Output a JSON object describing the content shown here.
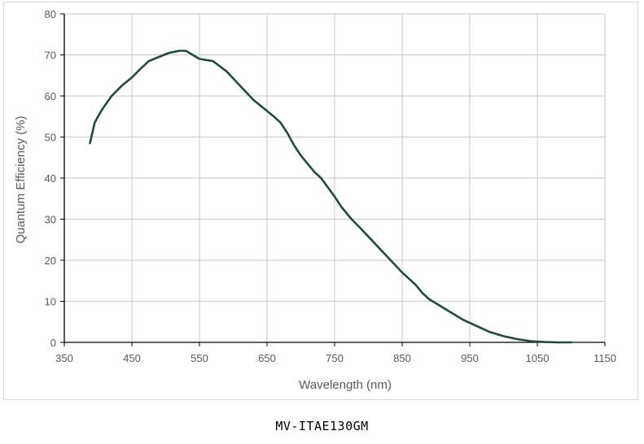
{
  "caption": "MV-ITAE130GM",
  "chart_data": {
    "type": "line",
    "title": "",
    "xlabel": "Wavelength (nm)",
    "ylabel": "Quantum Efficiency (%)",
    "xlim": [
      350,
      1150
    ],
    "ylim": [
      0,
      80
    ],
    "xticks": [
      350,
      450,
      550,
      650,
      750,
      850,
      950,
      1050,
      1150
    ],
    "yticks": [
      0,
      10,
      20,
      30,
      40,
      50,
      60,
      70,
      80
    ],
    "grid": true,
    "line_color": "#1f4a3d",
    "series": [
      {
        "name": "",
        "x": [
          388,
          395,
          405,
          420,
          435,
          450,
          462,
          475,
          490,
          505,
          520,
          530,
          550,
          570,
          590,
          610,
          630,
          645,
          660,
          670,
          680,
          690,
          700,
          710,
          720,
          730,
          750,
          760,
          775,
          790,
          810,
          830,
          850,
          870,
          880,
          890,
          900,
          920,
          940,
          960,
          980,
          1000,
          1020,
          1040,
          1060,
          1080,
          1100
        ],
        "y": [
          48.5,
          53.5,
          56.5,
          60,
          62.5,
          64.5,
          66.5,
          68.5,
          69.5,
          70.5,
          71,
          71,
          69,
          68.5,
          66,
          62.5,
          59,
          57,
          55,
          53.5,
          51,
          48,
          45.5,
          43.5,
          41.5,
          40,
          35.5,
          33,
          30,
          27.5,
          24,
          20.5,
          17,
          14,
          12,
          10.5,
          9.5,
          7.5,
          5.5,
          4,
          2.5,
          1.5,
          0.8,
          0.3,
          0.1,
          0,
          0
        ]
      }
    ]
  }
}
